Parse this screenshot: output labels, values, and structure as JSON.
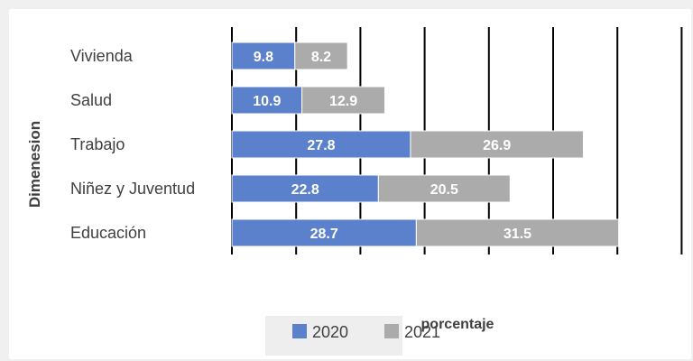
{
  "chart_data": {
    "type": "bar",
    "orientation": "horizontal",
    "stacked": true,
    "categories": [
      "Educación",
      "Niñez y Juventud",
      "Trabajo",
      "Salud",
      "Vivienda"
    ],
    "series": [
      {
        "name": "2020",
        "values": [
          28.7,
          22.8,
          27.8,
          10.9,
          9.8
        ],
        "color": "#5b80cc"
      },
      {
        "name": "2021",
        "values": [
          31.5,
          20.5,
          26.9,
          12.9,
          8.2
        ],
        "color": "#ababab"
      }
    ],
    "xlabel": "porcentaje",
    "ylabel": "Dimenesion",
    "xlim": [
      0,
      70
    ],
    "grid": "vertical",
    "legend": "bottom"
  }
}
